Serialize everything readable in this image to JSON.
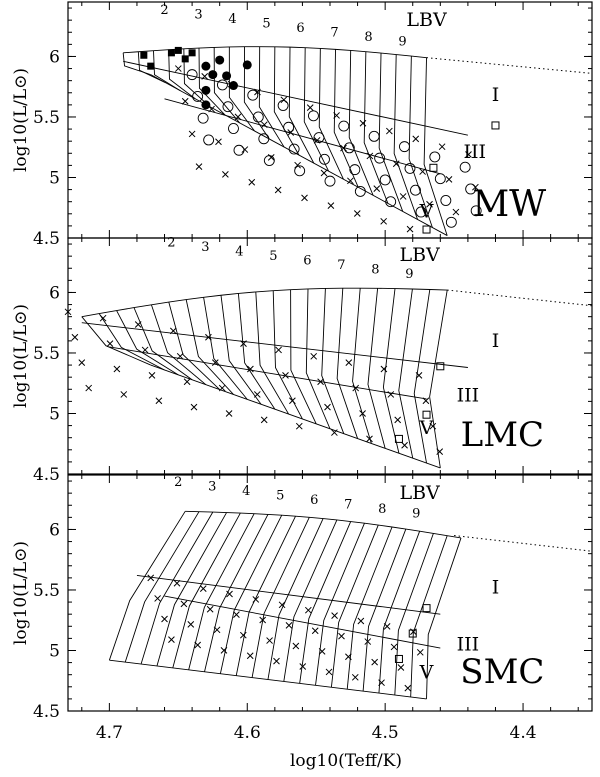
{
  "chart_data": {
    "type": "scatter",
    "xlabel": "log10(Teff/K)",
    "ylabel": "log10(L/L⊙)",
    "xlim": [
      4.73,
      4.35
    ],
    "ylim": [
      4.5,
      6.45
    ],
    "x_ticks": [
      "4.7",
      "4.6",
      "4.5",
      "4.4"
    ],
    "y_ticks": [
      "4.5",
      "5",
      "5.5",
      "6"
    ],
    "shared_x_axis": true,
    "panels": [
      {
        "name": "MW",
        "label_LBV": "LBV",
        "class_labels": [
          "I",
          "III",
          "V"
        ],
        "spectral_numbers": [
          "2",
          "3",
          "4",
          "5",
          "6",
          "7",
          "8",
          "9"
        ],
        "filled_squares": [
          [
            4.675,
            6.01
          ],
          [
            4.67,
            5.92
          ],
          [
            4.655,
            6.03
          ],
          [
            4.65,
            6.05
          ],
          [
            4.645,
            5.98
          ],
          [
            4.64,
            6.03
          ]
        ],
        "filled_circles": [
          [
            4.63,
            5.92
          ],
          [
            4.62,
            5.97
          ],
          [
            4.625,
            5.85
          ],
          [
            4.615,
            5.84
          ],
          [
            4.63,
            5.72
          ],
          [
            4.6,
            5.93
          ],
          [
            4.61,
            5.76
          ],
          [
            4.63,
            5.6
          ]
        ],
        "open_squares": [
          [
            4.42,
            5.43
          ],
          [
            4.465,
            5.08
          ],
          [
            4.47,
            4.57
          ]
        ]
      },
      {
        "name": "LMC",
        "label_LBV": "LBV",
        "class_labels": [
          "I",
          "III",
          "V"
        ],
        "spectral_numbers": [
          "2",
          "3",
          "4",
          "5",
          "6",
          "7",
          "8",
          "9"
        ],
        "open_squares": [
          [
            4.46,
            5.39
          ],
          [
            4.47,
            4.99
          ],
          [
            4.49,
            4.79
          ]
        ]
      },
      {
        "name": "SMC",
        "label_LBV": "LBV",
        "class_labels": [
          "I",
          "III",
          "V"
        ],
        "spectral_numbers": [
          "2",
          "3",
          "4",
          "5",
          "6",
          "7",
          "8",
          "9"
        ],
        "open_squares": [
          [
            4.47,
            5.35
          ],
          [
            4.48,
            5.14
          ],
          [
            4.49,
            4.93
          ]
        ]
      }
    ],
    "grid_on": false
  }
}
